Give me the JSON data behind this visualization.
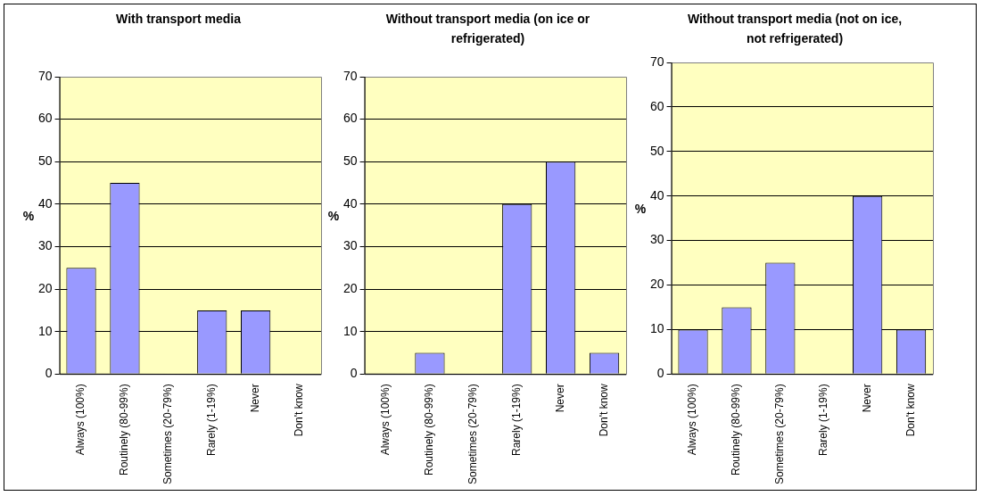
{
  "chart_data": [
    {
      "type": "bar",
      "title": "With transport media",
      "ylabel": "%",
      "categories": [
        "Always (100%)",
        "Routinely (80-99%)",
        "Sometimes (20-79%)",
        "Rarely (1-19%)",
        "Never",
        "Don't know"
      ],
      "values": [
        25,
        45,
        0,
        15,
        15,
        0
      ],
      "color": "#9999ff",
      "ylim": [
        0,
        70
      ],
      "yticks": [
        0,
        10,
        20,
        30,
        40,
        50,
        60,
        70
      ],
      "grid": "y"
    },
    {
      "type": "bar",
      "title": "Without transport media (on ice or refrigerated)",
      "ylabel": "%",
      "categories": [
        "Always (100%)",
        "Routinely (80-99%)",
        "Sometimes (20-79%)",
        "Rarely (1-19%)",
        "Never",
        "Don't know"
      ],
      "values": [
        0,
        5,
        0,
        40,
        50,
        5
      ],
      "color": "#9999ff",
      "ylim": [
        0,
        70
      ],
      "yticks": [
        0,
        10,
        20,
        30,
        40,
        50,
        60,
        70
      ],
      "grid": "y"
    },
    {
      "type": "bar",
      "title": "Without transport media (not on ice, not refrigerated)",
      "ylabel": "%",
      "categories": [
        "Always (100%)",
        "Routinely (80-99%)",
        "Sometimes (20-79%)",
        "Rarely (1-19%)",
        "Never",
        "Don't know"
      ],
      "values": [
        10,
        15,
        25,
        0,
        40,
        10
      ],
      "color": "#9999ff",
      "ylim": [
        0,
        70
      ],
      "yticks": [
        0,
        10,
        20,
        30,
        40,
        50,
        60,
        70
      ],
      "grid": "y"
    }
  ]
}
